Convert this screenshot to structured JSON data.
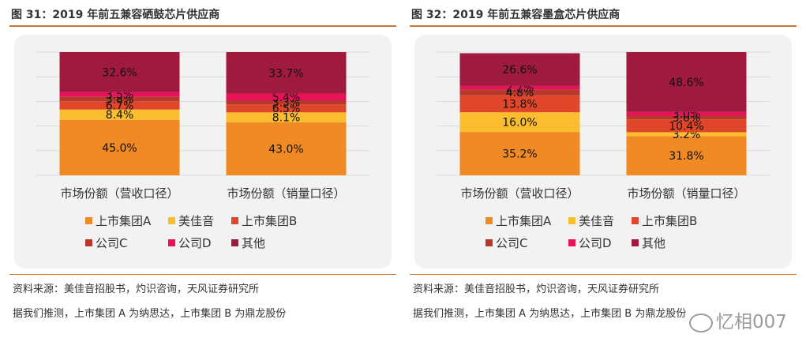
{
  "chart_data": [
    {
      "type": "bar",
      "stacked": true,
      "title": "图 31：2019 年前五兼容硒鼓芯片供应商",
      "categories": [
        "市场份额（营收口径）",
        "市场份额（销量口径）"
      ],
      "series": [
        {
          "name": "上市集团A",
          "color": "#f08a24",
          "values": [
            45.0,
            43.0
          ],
          "labels": [
            "45.0%",
            "43.0%"
          ]
        },
        {
          "name": "美佳音",
          "color": "#f9bd2e",
          "values": [
            8.4,
            8.1
          ],
          "labels": [
            "8.4%",
            "8.1%"
          ]
        },
        {
          "name": "上市集团B",
          "color": "#e0462a",
          "values": [
            6.7,
            6.5
          ],
          "labels": [
            "6.7%",
            "6.5%"
          ]
        },
        {
          "name": "公司C",
          "color": "#b7392e",
          "values": [
            3.8,
            3.3
          ],
          "labels": [
            "3.8%",
            "3.3%"
          ]
        },
        {
          "name": "公司D",
          "color": "#e8115a",
          "values": [
            3.5,
            5.4
          ],
          "labels": [
            "3.5%",
            "5.4%"
          ]
        },
        {
          "name": "其他",
          "color": "#a01a40",
          "values": [
            32.6,
            33.7
          ],
          "labels": [
            "32.6%",
            "33.7%"
          ]
        }
      ],
      "ylim": [
        0,
        100
      ],
      "grid": true,
      "legend_position": "bottom",
      "source_note": "资料来源：美佳音招股书，灼识咨询，天风证券研究所",
      "assumption_note": "据我们推测，上市集团 A 为纳思达，上市集团 B 为鼎龙股份"
    },
    {
      "type": "bar",
      "stacked": true,
      "title": "图 32：2019 年前五兼容墨盒芯片供应商",
      "categories": [
        "市场份额（营收口径）",
        "市场份额（销量口径）"
      ],
      "series": [
        {
          "name": "上市集团A",
          "color": "#f08a24",
          "values": [
            35.2,
            31.8
          ],
          "labels": [
            "35.2%",
            "31.8%"
          ]
        },
        {
          "name": "美佳音",
          "color": "#f9bd2e",
          "values": [
            16.0,
            3.2
          ],
          "labels": [
            "16.0%",
            "3.2%"
          ]
        },
        {
          "name": "上市集团B",
          "color": "#e0462a",
          "values": [
            13.8,
            10.4
          ],
          "labels": [
            "13.8%",
            "10.4%"
          ]
        },
        {
          "name": "公司C",
          "color": "#b7392e",
          "values": [
            4.8,
            3.0
          ],
          "labels": [
            "4.8%",
            "3.0%"
          ]
        },
        {
          "name": "公司D",
          "color": "#e8115a",
          "values": [
            2.7,
            3.0
          ],
          "labels": [
            "2.7%",
            "3.0%"
          ]
        },
        {
          "name": "其他",
          "color": "#a01a40",
          "values": [
            26.6,
            48.6
          ],
          "labels": [
            "26.6%",
            "48.6%"
          ]
        }
      ],
      "ylim": [
        0,
        100
      ],
      "grid": true,
      "legend_position": "bottom",
      "source_note": "资料来源：美佳音招股书，灼识咨询，天风证券研究所",
      "assumption_note": "据我们推测，上市集团 A 为纳思达，上市集团 B 为鼎龙股份"
    }
  ],
  "watermark": "忆相007"
}
